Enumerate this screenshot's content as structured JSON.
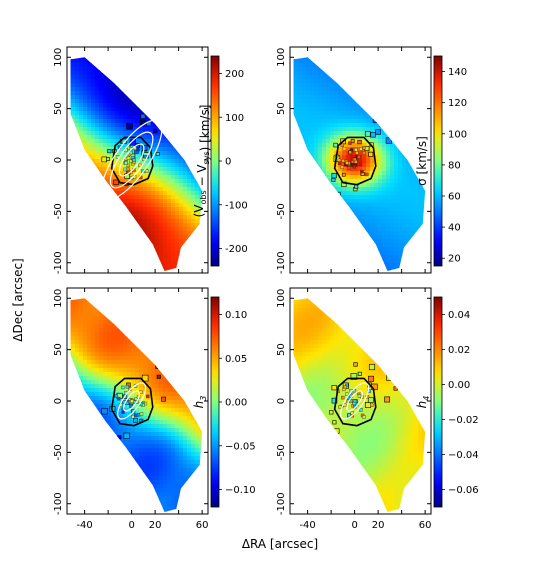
{
  "figure": {
    "xlabel": "ΔRA [arcsec]",
    "ylabel": "ΔDec [arcsec]"
  },
  "colors": {
    "frame": "#000000",
    "contour": "#000000",
    "ellipse": "#ffffff",
    "outline": "#000000"
  },
  "chart_data": [
    {
      "type": "heatmap",
      "quantity": "velocity",
      "xlim": [
        -55,
        65
      ],
      "ylim": [
        -110,
        110
      ],
      "xticks": [],
      "yticks": [
        100,
        50,
        0,
        -50,
        -100
      ],
      "colorbar": {
        "label": "(V_obs − V_sys) [km/s]",
        "label_main": "(V",
        "sub1": "obs",
        "mid": "− V",
        "sub2": "sys",
        "tail": ") [km/s]",
        "ticks": [
          200,
          100,
          0,
          -100,
          -200
        ],
        "range": [
          -240,
          240
        ]
      },
      "ellipses": true,
      "contour": true
    },
    {
      "type": "heatmap",
      "quantity": "sigma",
      "xlim": [
        -55,
        65
      ],
      "ylim": [
        -110,
        110
      ],
      "xticks": [],
      "yticks": [
        100,
        50,
        0,
        -50,
        -100
      ],
      "colorbar": {
        "label": "σ [km/s]",
        "ticks": [
          140,
          120,
          100,
          80,
          60,
          40,
          20
        ],
        "range": [
          15,
          150
        ]
      },
      "ellipses": false,
      "contour": true
    },
    {
      "type": "heatmap",
      "quantity": "h3",
      "xlim": [
        -55,
        65
      ],
      "ylim": [
        -110,
        110
      ],
      "xticks": [
        -40,
        0,
        20,
        60
      ],
      "yticks": [
        100,
        50,
        0,
        -50,
        -100
      ],
      "colorbar": {
        "label": "h3",
        "label_main": "h",
        "sub": "3",
        "ticks": [
          0.1,
          0.05,
          0.0,
          -0.05,
          -0.1
        ],
        "tick_labels": [
          "0.10",
          "0.05",
          "0.00",
          "−0.05",
          "−0.10"
        ],
        "range": [
          -0.12,
          0.12
        ]
      },
      "ellipses": true,
      "contour": true
    },
    {
      "type": "heatmap",
      "quantity": "h4",
      "xlim": [
        -55,
        65
      ],
      "ylim": [
        -110,
        110
      ],
      "xticks": [
        -40,
        0,
        20,
        60
      ],
      "yticks": [
        100,
        50,
        0,
        -50,
        -100
      ],
      "colorbar": {
        "label": "h4",
        "label_main": "h",
        "sub": "4",
        "ticks": [
          0.04,
          0.02,
          0.0,
          -0.02,
          -0.04,
          -0.06
        ],
        "tick_labels": [
          "0.04",
          "0.02",
          "0.00",
          "−0.02",
          "−0.04",
          "−0.06"
        ],
        "range": [
          -0.07,
          0.05
        ]
      },
      "ellipses": true,
      "contour": true
    }
  ]
}
